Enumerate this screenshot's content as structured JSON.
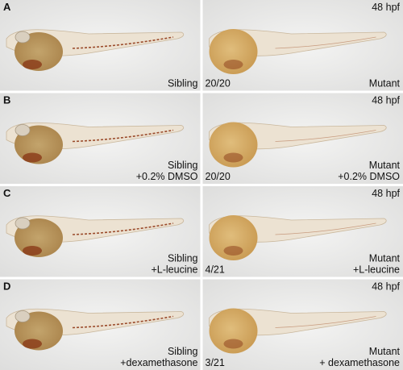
{
  "figure": {
    "rows": [
      {
        "label": "A",
        "stage": "48 hpf",
        "left": {
          "lines": [
            "Sibling"
          ]
        },
        "right": {
          "count": "20/20",
          "lines": [
            "Mutant"
          ]
        }
      },
      {
        "label": "B",
        "stage": "48 hpf",
        "left": {
          "lines": [
            "Sibling",
            "+0.2% DMSO"
          ]
        },
        "right": {
          "count": "20/20",
          "lines": [
            "Mutant",
            "+0.2% DMSO"
          ]
        }
      },
      {
        "label": "C",
        "stage": "48 hpf",
        "left": {
          "lines": [
            "Sibling",
            "+L-leucine"
          ]
        },
        "right": {
          "count": "4/21",
          "lines": [
            "Mutant",
            "+L-leucine"
          ]
        }
      },
      {
        "label": "D",
        "stage": "48 hpf",
        "left": {
          "lines": [
            "Sibling",
            "+dexamethasone"
          ]
        },
        "right": {
          "count": "3/21",
          "lines": [
            "Mutant",
            "+ dexamethasone"
          ]
        }
      }
    ]
  }
}
